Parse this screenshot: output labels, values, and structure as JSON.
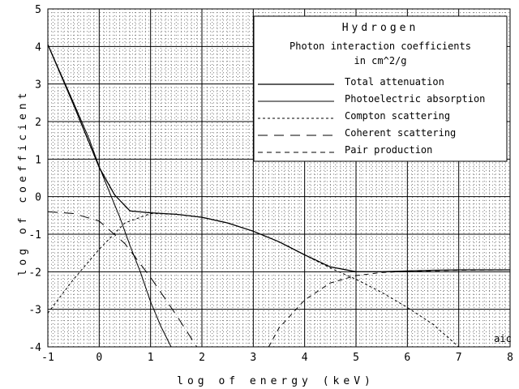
{
  "chart_data": {
    "type": "line",
    "xlabel": "log of energy (keV)",
    "ylabel": "log of coefficient",
    "xlim": [
      -1,
      8
    ],
    "ylim": [
      -4,
      5
    ],
    "xticks": [
      "-1",
      "0",
      "1",
      "2",
      "3",
      "4",
      "5",
      "6",
      "7",
      "8"
    ],
    "yticks": [
      "-4",
      "-3",
      "-2",
      "-1",
      "0",
      "1",
      "2",
      "3",
      "4",
      "5"
    ],
    "grid": "major and minor (dotted minor)",
    "legend_position": "top-right",
    "legend": {
      "title": "Hydrogen",
      "subtitle_line1": "Photon interaction coefficients",
      "subtitle_line2": "in cm^2/g"
    },
    "annotation": "aic",
    "series": [
      {
        "name": "Total attenuation",
        "dash": "solid",
        "x": [
          -1,
          -0.5,
          0,
          0.3,
          0.6,
          1,
          1.5,
          2,
          2.5,
          3,
          3.5,
          4,
          4.5,
          5,
          5.5,
          6,
          6.5,
          7,
          7.5,
          8
        ],
        "y": [
          4.05,
          2.45,
          0.78,
          0.05,
          -0.38,
          -0.43,
          -0.47,
          -0.55,
          -0.7,
          -0.92,
          -1.2,
          -1.55,
          -1.87,
          -2,
          -2,
          -1.98,
          -1.96,
          -1.95,
          -1.95,
          -1.95
        ]
      },
      {
        "name": "Photoelectric absorption",
        "dash": "solid-thin",
        "x": [
          -1,
          -0.5,
          -0.2,
          0,
          0.2,
          0.4,
          0.6,
          0.8,
          1,
          1.2,
          1.4
        ],
        "y": [
          4.05,
          2.5,
          1.55,
          0.8,
          0.12,
          -0.55,
          -1.3,
          -2,
          -2.8,
          -3.45,
          -4
        ]
      },
      {
        "name": "Compton scattering",
        "dash": "short-dash",
        "x": [
          -1,
          -0.5,
          0,
          0.5,
          1,
          1.5,
          2,
          2.5,
          3,
          3.5,
          4,
          4.5,
          5,
          5.5,
          6,
          6.5,
          7
        ],
        "y": [
          -3.1,
          -2.2,
          -1.4,
          -0.7,
          -0.45,
          -0.47,
          -0.55,
          -0.7,
          -0.92,
          -1.2,
          -1.55,
          -1.9,
          -2.2,
          -2.55,
          -2.95,
          -3.4,
          -4
        ]
      },
      {
        "name": "Coherent scattering",
        "dash": "long-dash",
        "x": [
          -1,
          -0.5,
          0,
          0.5,
          1,
          1.5,
          1.9
        ],
        "y": [
          -0.4,
          -0.45,
          -0.65,
          -1.25,
          -2.15,
          -3.15,
          -4
        ]
      },
      {
        "name": "Pair production",
        "dash": "dash",
        "x": [
          3.3,
          3.5,
          4,
          4.5,
          5,
          5.5,
          6,
          7,
          8
        ],
        "y": [
          -4,
          -3.5,
          -2.75,
          -2.3,
          -2.1,
          -2.02,
          -1.99,
          -1.96,
          -1.95
        ]
      }
    ]
  }
}
